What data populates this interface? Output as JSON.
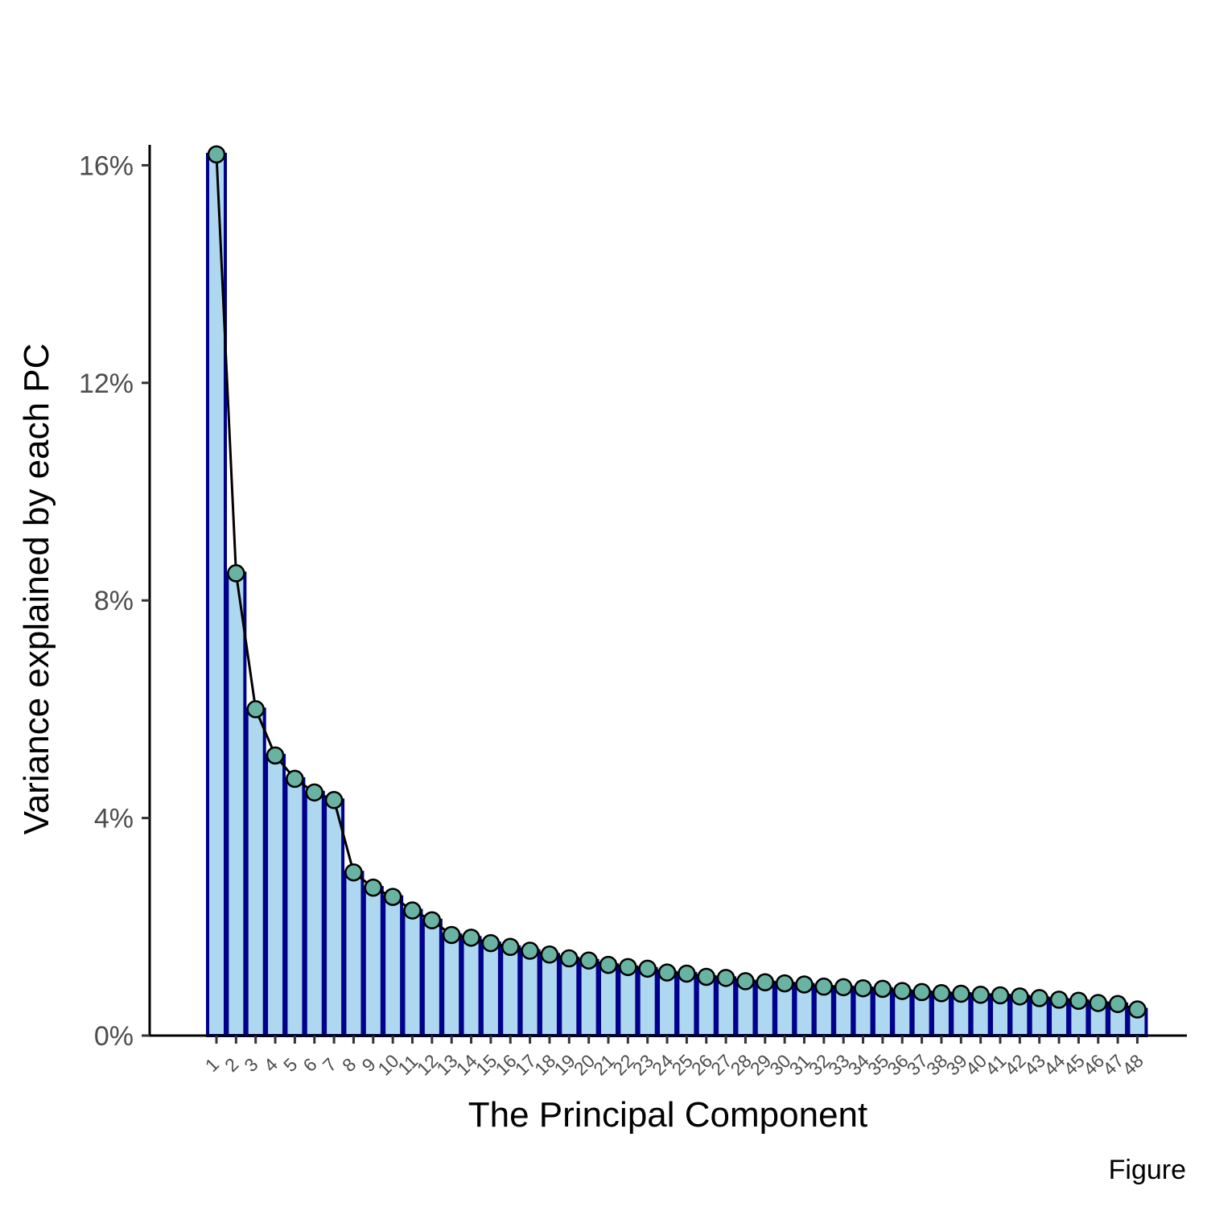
{
  "chart_data": {
    "type": "bar",
    "title": "",
    "xlabel": "The Principal Component",
    "ylabel": "Variance explained by each PC",
    "caption": "Figure",
    "ylim": [
      0,
      16.5
    ],
    "y_ticks": [
      0,
      4,
      8,
      12,
      16
    ],
    "y_tick_labels": [
      "0%",
      "4%",
      "8%",
      "12%",
      "16%"
    ],
    "grid": false,
    "legend": "none",
    "overlay": "line with points",
    "categories": [
      "1",
      "2",
      "3",
      "4",
      "5",
      "6",
      "7",
      "8",
      "9",
      "10",
      "11",
      "12",
      "13",
      "14",
      "15",
      "16",
      "17",
      "18",
      "19",
      "20",
      "21",
      "22",
      "23",
      "24",
      "25",
      "26",
      "27",
      "28",
      "29",
      "30",
      "31",
      "32",
      "33",
      "34",
      "35",
      "36",
      "37",
      "38",
      "39",
      "40",
      "41",
      "42",
      "43",
      "44",
      "45",
      "46",
      "47",
      "48"
    ],
    "values": [
      16.2,
      8.5,
      6.0,
      5.15,
      4.72,
      4.47,
      4.33,
      3.0,
      2.72,
      2.55,
      2.3,
      2.12,
      1.85,
      1.8,
      1.7,
      1.63,
      1.56,
      1.49,
      1.42,
      1.38,
      1.3,
      1.26,
      1.23,
      1.16,
      1.14,
      1.08,
      1.06,
      1.0,
      0.98,
      0.96,
      0.94,
      0.9,
      0.89,
      0.87,
      0.86,
      0.82,
      0.8,
      0.78,
      0.77,
      0.75,
      0.74,
      0.72,
      0.69,
      0.66,
      0.64,
      0.6,
      0.58,
      0.48
    ],
    "colors": {
      "bar_fill": "#add8f0",
      "bar_outline": "#00008b",
      "line": "#000000",
      "point_fill": "#69b3a2",
      "point_outline": "#000000",
      "axis": "#000000"
    }
  }
}
